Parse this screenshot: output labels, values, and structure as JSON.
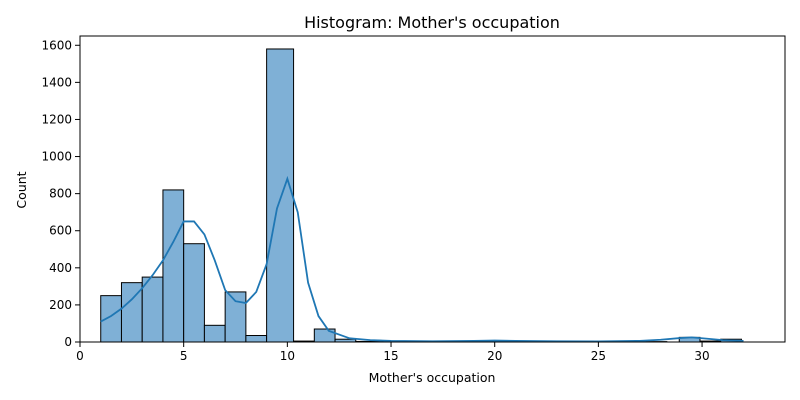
{
  "chart_data": {
    "type": "bar",
    "title": "Histogram: Mother's occupation",
    "xlabel": "Mother's occupation",
    "ylabel": "Count",
    "xlim": [
      0,
      34
    ],
    "ylim": [
      0,
      1650
    ],
    "xticks": [
      0,
      5,
      10,
      15,
      20,
      25,
      30
    ],
    "yticks": [
      0,
      200,
      400,
      600,
      800,
      1000,
      1200,
      1400,
      1600
    ],
    "bar_color": "#7fb0d6",
    "line_color": "#1f77b4",
    "bins": [
      {
        "x0": 1.0,
        "x1": 2.0,
        "count": 250
      },
      {
        "x0": 2.0,
        "x1": 3.0,
        "count": 320
      },
      {
        "x0": 3.0,
        "x1": 4.0,
        "count": 350
      },
      {
        "x0": 4.0,
        "x1": 5.0,
        "count": 820
      },
      {
        "x0": 5.0,
        "x1": 6.0,
        "count": 530
      },
      {
        "x0": 6.0,
        "x1": 7.0,
        "count": 90
      },
      {
        "x0": 7.0,
        "x1": 8.0,
        "count": 270
      },
      {
        "x0": 8.0,
        "x1": 9.0,
        "count": 35
      },
      {
        "x0": 9.0,
        "x1": 10.3,
        "count": 1580
      },
      {
        "x0": 10.3,
        "x1": 11.3,
        "count": 5
      },
      {
        "x0": 11.3,
        "x1": 12.3,
        "count": 70
      },
      {
        "x0": 12.3,
        "x1": 13.3,
        "count": 15
      },
      {
        "x0": 13.3,
        "x1": 14.3,
        "count": 3
      },
      {
        "x0": 14.3,
        "x1": 15.3,
        "count": 3
      },
      {
        "x0": 15.3,
        "x1": 16.3,
        "count": 2
      },
      {
        "x0": 16.3,
        "x1": 17.3,
        "count": 1
      },
      {
        "x0": 17.3,
        "x1": 18.3,
        "count": 1
      },
      {
        "x0": 18.3,
        "x1": 19.3,
        "count": 2
      },
      {
        "x0": 19.3,
        "x1": 20.3,
        "count": 4
      },
      {
        "x0": 20.3,
        "x1": 21.3,
        "count": 2
      },
      {
        "x0": 21.3,
        "x1": 22.3,
        "count": 1
      },
      {
        "x0": 22.3,
        "x1": 23.3,
        "count": 1
      },
      {
        "x0": 23.3,
        "x1": 24.3,
        "count": 1
      },
      {
        "x0": 24.3,
        "x1": 25.3,
        "count": 1
      },
      {
        "x0": 25.3,
        "x1": 26.3,
        "count": 1
      },
      {
        "x0": 26.3,
        "x1": 27.3,
        "count": 1
      },
      {
        "x0": 27.3,
        "x1": 28.3,
        "count": 2
      },
      {
        "x0": 28.9,
        "x1": 29.9,
        "count": 25
      },
      {
        "x0": 29.9,
        "x1": 30.9,
        "count": 5
      },
      {
        "x0": 30.9,
        "x1": 31.9,
        "count": 15
      }
    ],
    "kde": {
      "x": [
        1,
        1.5,
        2,
        2.5,
        3,
        3.5,
        4,
        4.5,
        5,
        5.5,
        6,
        6.5,
        7,
        7.5,
        8,
        8.5,
        9,
        9.5,
        10,
        10.5,
        11,
        11.5,
        12,
        13,
        14,
        15,
        17,
        19,
        20,
        21,
        23,
        25,
        27,
        28,
        29,
        29.5,
        30,
        31,
        32
      ],
      "y": [
        110,
        140,
        180,
        230,
        290,
        360,
        440,
        540,
        650,
        650,
        580,
        440,
        280,
        220,
        210,
        270,
        420,
        720,
        880,
        700,
        320,
        140,
        60,
        20,
        10,
        6,
        4,
        6,
        8,
        6,
        4,
        3,
        6,
        12,
        22,
        25,
        20,
        10,
        6
      ]
    }
  }
}
